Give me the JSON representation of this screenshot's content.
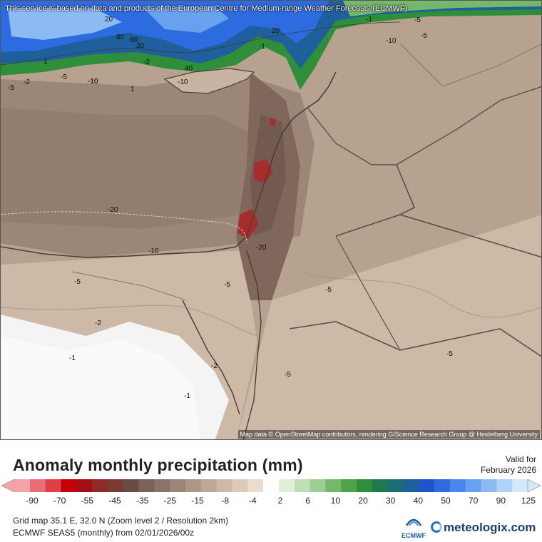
{
  "map": {
    "notice": "This service is based on data and products of the European Centre for Medium-range Weather Forecasts (ECMWF)",
    "attribution": "Map data © OpenStreetMap contributors, rendering GIScience Research Group @ Heidelberg University",
    "contour_labels": [
      "20",
      "80",
      "60",
      "20",
      "-2",
      "40",
      "-10",
      "1",
      "-1",
      "20",
      "-1",
      "-10",
      "-5",
      "-5",
      "-10",
      "-2",
      "-5",
      "-5",
      "-10",
      "1",
      "-20",
      "-10",
      "-20",
      "-5",
      "-5",
      "-5",
      "-2",
      "-1",
      "-2",
      "-5",
      "-1",
      "-5"
    ]
  },
  "legend": {
    "title": "Anomaly monthly precipitation (mm)",
    "valid_label": "Valid for",
    "valid_date": "February 2026",
    "ticks": [
      "-90",
      "-70",
      "-55",
      "-45",
      "-35",
      "-25",
      "-15",
      "-8",
      "-4",
      "2",
      "6",
      "10",
      "20",
      "30",
      "40",
      "50",
      "70",
      "90",
      "125"
    ],
    "colors": [
      "#f4a3a8",
      "#ea6e78",
      "#de3e46",
      "#c4000d",
      "#a30d13",
      "#8c2b28",
      "#7a3b35",
      "#6b4c44",
      "#7c6157",
      "#8a7468",
      "#9a8577",
      "#ab9785",
      "#bca894",
      "#cdb9a6",
      "#ddcbb9",
      "#ebdccf",
      "#ffffff",
      "#dff0d8",
      "#bfdfb5",
      "#9dcf93",
      "#74b86c",
      "#4fa24b",
      "#2f8e3a",
      "#1e7a4e",
      "#1b6d78",
      "#1f5f9c",
      "#1e56c9",
      "#2d6be0",
      "#4a87ea",
      "#6aa1ef",
      "#8cbaf3",
      "#b0d2f6",
      "#d3e8fa"
    ],
    "grid_info": "Grid map 35.1 E, 32.0 N (Zoom level 2 / Resolution 2km)",
    "model_info": "ECMWF SEAS5 (monthly) from 02/01/2026/00z",
    "logo_ecmwf": "ECMWF",
    "logo_brand": "meteologix.com"
  }
}
